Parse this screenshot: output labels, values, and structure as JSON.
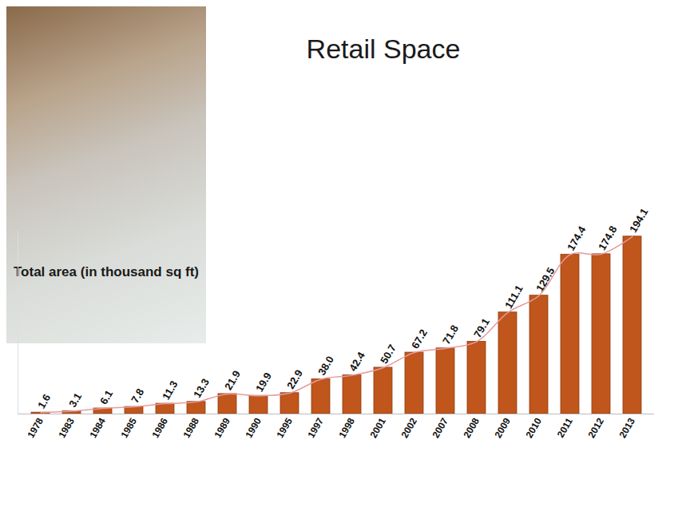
{
  "chart_data": {
    "type": "bar",
    "title": "Retail Space",
    "subtitle": "Total area (in thousand sq ft)",
    "categories": [
      "1978",
      "1983",
      "1984",
      "1985",
      "1986",
      "1988",
      "1989",
      "1990",
      "1995",
      "1997",
      "1998",
      "2001",
      "2002",
      "2007",
      "2008",
      "2009",
      "2010",
      "2011",
      "2012",
      "2013"
    ],
    "series": [
      {
        "type": "bar",
        "color": "#c0561c",
        "values": [
          1.6,
          3.1,
          6.1,
          7.8,
          11.3,
          13.3,
          21.9,
          19.9,
          22.9,
          38.0,
          42.4,
          50.7,
          67.2,
          71.8,
          79.1,
          111.1,
          129.5,
          174.4,
          174.8,
          194.1
        ],
        "value_labels": [
          "1.6",
          "3.1",
          "6.1",
          "7.8",
          "11.3",
          "13.3",
          "21.9",
          "19.9",
          "22.9",
          "38.0",
          "42.4",
          "50.7",
          "67.2",
          "71.8",
          "79.1",
          "111.1",
          "129.5",
          "174.4",
          "174.8",
          "194.1"
        ]
      },
      {
        "type": "line",
        "color": "#e89a9a",
        "values": [
          1.6,
          3.1,
          6.1,
          7.8,
          11.3,
          13.3,
          21.9,
          19.9,
          22.9,
          38.0,
          42.4,
          50.7,
          67.2,
          71.8,
          79.1,
          111.1,
          129.5,
          174.4,
          174.8,
          194.1
        ]
      }
    ],
    "ylim": [
      0,
      200
    ],
    "data_labels": true,
    "tick_labels": "x",
    "grid": false
  }
}
